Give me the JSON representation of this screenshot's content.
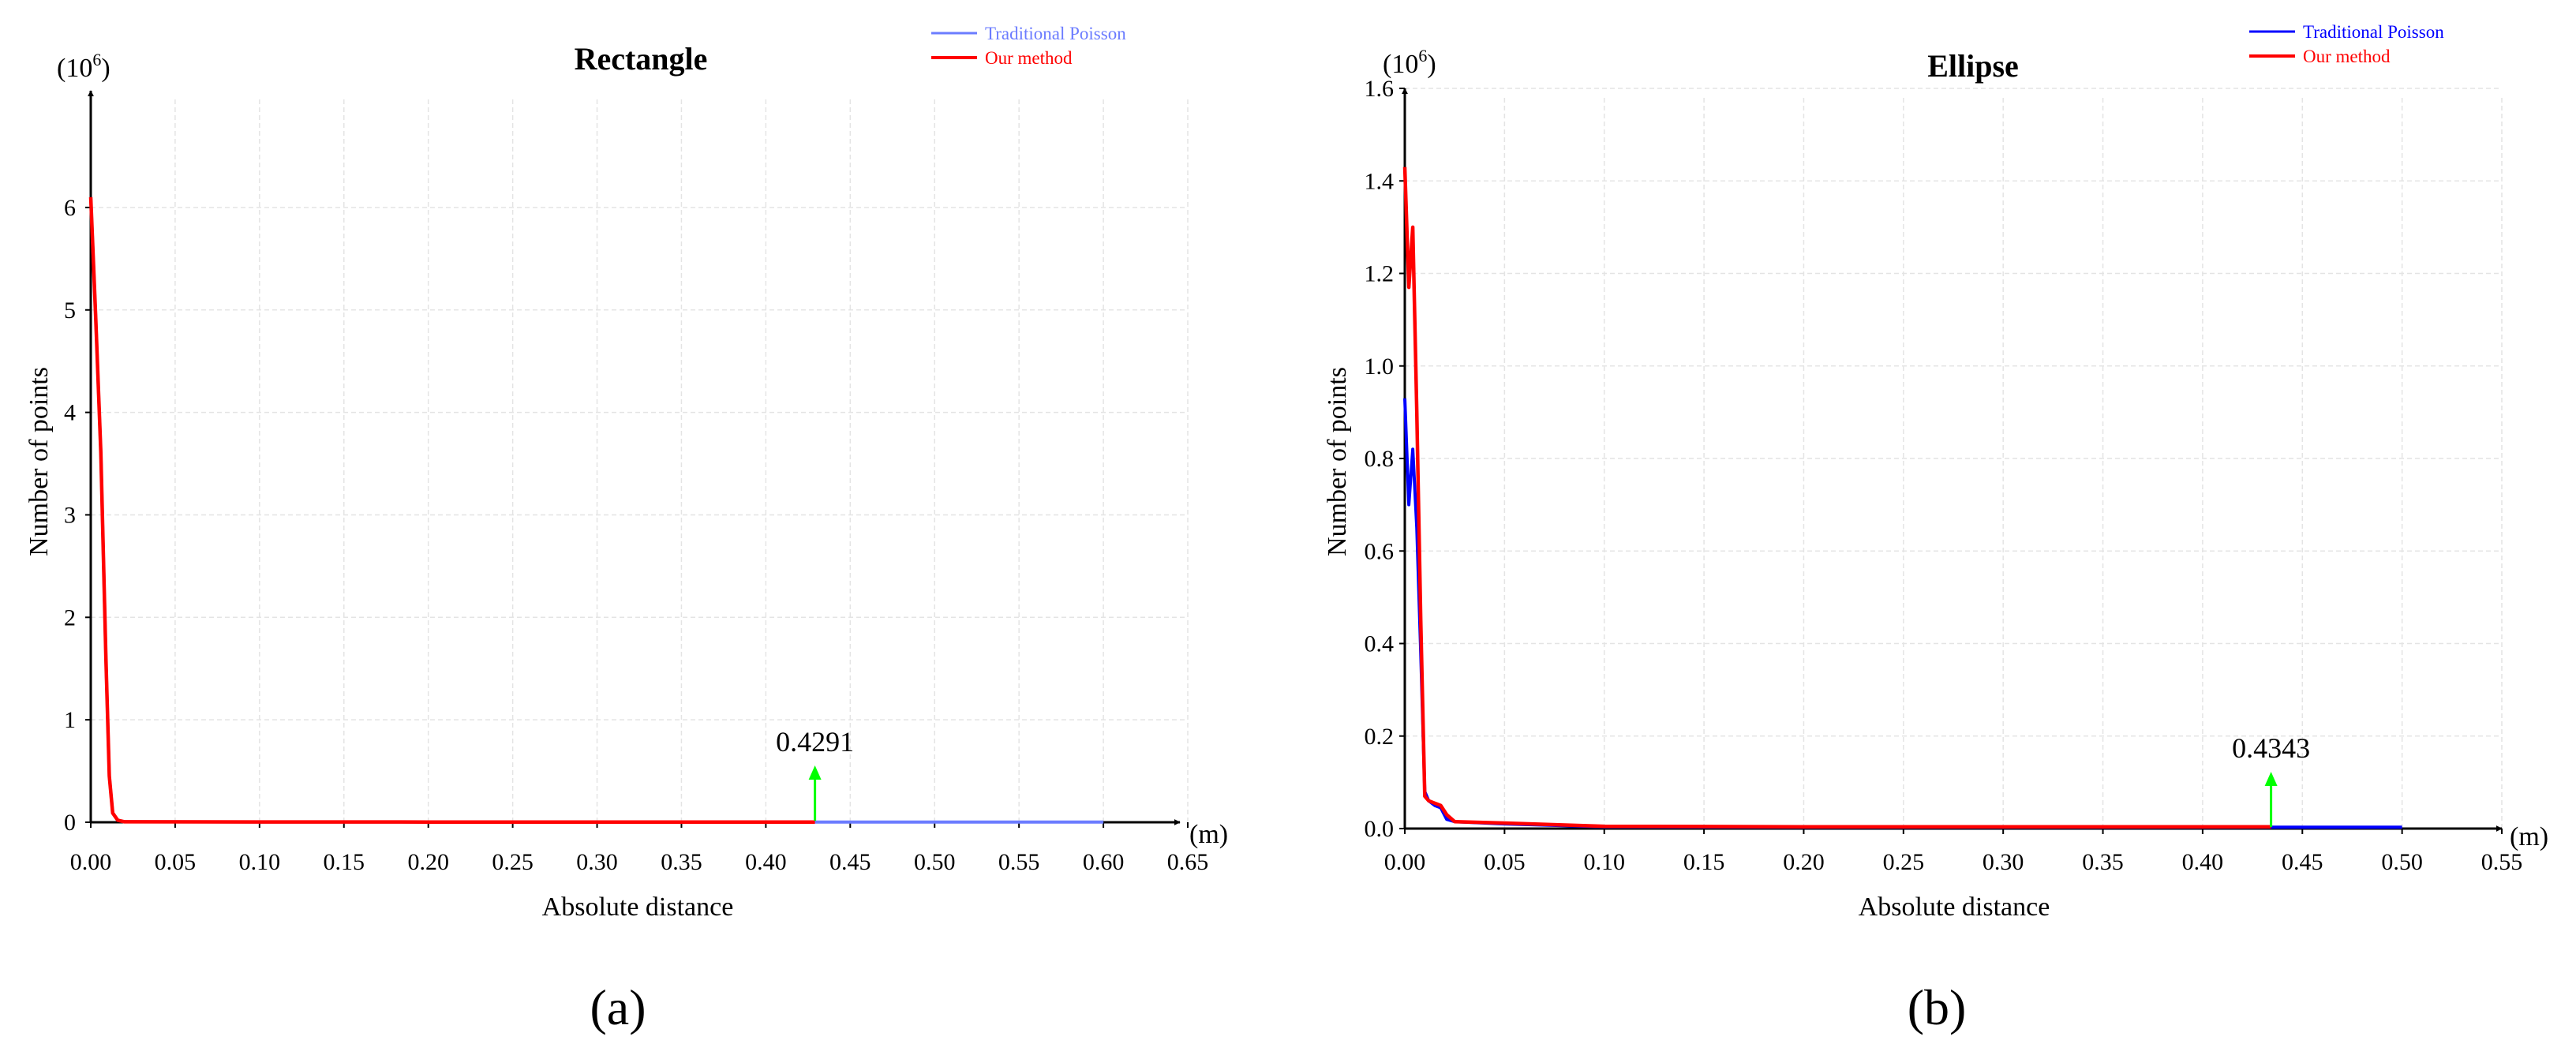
{
  "chart_data": [
    {
      "type": "line",
      "title": "Rectangle",
      "panel_label": "(a)",
      "xlabel": "Absolute distance",
      "x_unit": "(m)",
      "ylabel": "Number of points",
      "y_unit": "(10",
      "y_unit_exp": "6",
      "y_unit_close": ")",
      "xlim": [
        0,
        0.65
      ],
      "ylim": [
        0,
        6.6
      ],
      "xticks": [
        0,
        0.05,
        0.1,
        0.15,
        0.2,
        0.25,
        0.3,
        0.35,
        0.4,
        0.45,
        0.5,
        0.55,
        0.6,
        0.65
      ],
      "xtick_labels": [
        "0.00",
        "0.05",
        "0.10",
        "0.15",
        "0.20",
        "0.25",
        "0.30",
        "0.35",
        "0.40",
        "0.45",
        "0.50",
        "0.55",
        "0.60",
        "0.65"
      ],
      "yticks": [
        0,
        1,
        2,
        3,
        4,
        5,
        6
      ],
      "ytick_labels": [
        "0",
        "1",
        "2",
        "3",
        "4",
        "5",
        "6"
      ],
      "grid": true,
      "legend_position": "top-right",
      "series": [
        {
          "name": "Traditional Poisson",
          "color": "#6b7cff",
          "x": [
            0.0,
            0.003,
            0.006,
            0.009,
            0.011,
            0.013,
            0.016,
            0.02,
            0.1,
            0.2,
            0.3,
            0.4291,
            0.5,
            0.6
          ],
          "y": [
            6.1,
            4.9,
            3.6,
            1.6,
            0.45,
            0.09,
            0.02,
            0.005,
            0.003,
            0.002,
            0.002,
            0.002,
            0.002,
            0.002
          ]
        },
        {
          "name": "Our method",
          "color": "#ff0000",
          "x": [
            0.0,
            0.003,
            0.006,
            0.009,
            0.011,
            0.013,
            0.016,
            0.02,
            0.1,
            0.2,
            0.3,
            0.4291
          ],
          "y": [
            6.1,
            4.9,
            3.6,
            1.6,
            0.45,
            0.09,
            0.02,
            0.005,
            0.003,
            0.002,
            0.002,
            0.002
          ]
        }
      ],
      "annotation": {
        "text": "0.4291",
        "x": 0.4291,
        "arrow_color": "#00ff00"
      }
    },
    {
      "type": "line",
      "title": "Ellipse",
      "panel_label": "(b)",
      "xlabel": "Absolute distance",
      "x_unit": "(m)",
      "ylabel": "Number of points",
      "y_unit": "(10",
      "y_unit_exp": "6",
      "y_unit_close": ")",
      "xlim": [
        0,
        0.55
      ],
      "ylim": [
        0,
        1.6
      ],
      "xticks": [
        0,
        0.05,
        0.1,
        0.15,
        0.2,
        0.25,
        0.3,
        0.35,
        0.4,
        0.45,
        0.5,
        0.55
      ],
      "xtick_labels": [
        "0.00",
        "0.05",
        "0.10",
        "0.15",
        "0.20",
        "0.25",
        "0.30",
        "0.35",
        "0.40",
        "0.45",
        "0.50",
        "0.55"
      ],
      "yticks": [
        0,
        0.2,
        0.4,
        0.6,
        0.8,
        1.0,
        1.2,
        1.4,
        1.6
      ],
      "ytick_labels": [
        "0.0",
        "0.2",
        "0.4",
        "0.6",
        "0.8",
        "1.0",
        "1.2",
        "1.4",
        "1.6"
      ],
      "grid": true,
      "legend_position": "top-right",
      "series": [
        {
          "name": "Traditional Poisson",
          "color": "#0000ff",
          "x": [
            0.0,
            0.002,
            0.004,
            0.006,
            0.008,
            0.01,
            0.012,
            0.015,
            0.018,
            0.021,
            0.025,
            0.05,
            0.1,
            0.2,
            0.3,
            0.4343,
            0.5
          ],
          "y": [
            0.93,
            0.7,
            0.82,
            0.65,
            0.38,
            0.08,
            0.06,
            0.05,
            0.045,
            0.02,
            0.015,
            0.01,
            0.004,
            0.003,
            0.003,
            0.003,
            0.003
          ]
        },
        {
          "name": "Our method",
          "color": "#ff0000",
          "x": [
            0.0,
            0.002,
            0.004,
            0.006,
            0.008,
            0.01,
            0.012,
            0.015,
            0.018,
            0.021,
            0.025,
            0.05,
            0.1,
            0.2,
            0.3,
            0.4343
          ],
          "y": [
            1.43,
            1.17,
            1.3,
            0.9,
            0.45,
            0.07,
            0.06,
            0.055,
            0.05,
            0.03,
            0.015,
            0.012,
            0.005,
            0.004,
            0.004,
            0.004
          ]
        }
      ],
      "annotation": {
        "text": "0.4343",
        "x": 0.4343,
        "arrow_color": "#00ff00"
      }
    }
  ]
}
